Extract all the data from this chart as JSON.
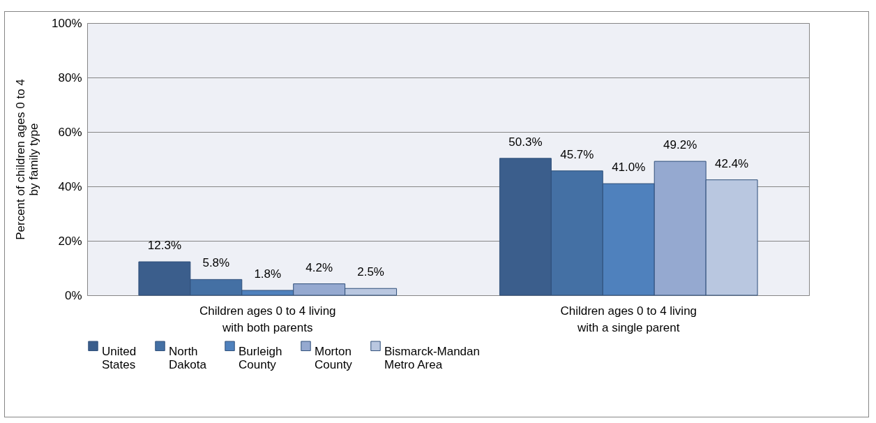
{
  "chart_data": {
    "type": "bar",
    "ylabel": "Percent of children ages 0 to 4 by family type",
    "categories": [
      "Children ages 0 to 4 living with both parents",
      "Children ages 0 to 4 living with a single parent"
    ],
    "series": [
      {
        "name": "United States",
        "color": "#3b5e8c",
        "values": [
          12.3,
          50.3
        ],
        "value_labels": [
          "12.3%",
          "50.3%"
        ]
      },
      {
        "name": "North Dakota",
        "color": "#4470a4",
        "values": [
          5.8,
          45.7
        ],
        "value_labels": [
          "5.8%",
          "45.7%"
        ]
      },
      {
        "name": "Burleigh County",
        "color": "#4f81bd",
        "values": [
          1.8,
          41.0
        ],
        "value_labels": [
          "1.8%",
          "41.0%"
        ]
      },
      {
        "name": "Morton County",
        "color": "#95a9d0",
        "values": [
          4.2,
          49.2
        ],
        "value_labels": [
          "4.2%",
          "49.2%"
        ]
      },
      {
        "name": "Bismarck-Mandan Metro Area",
        "color": "#b9c7e0",
        "values": [
          2.5,
          42.4
        ],
        "value_labels": [
          "2.5%",
          "42.4%"
        ]
      }
    ],
    "ylim": [
      0,
      100
    ],
    "yticks": [
      {
        "value": 0,
        "label": "0%"
      },
      {
        "value": 20,
        "label": "20%"
      },
      {
        "value": 40,
        "label": "40%"
      },
      {
        "value": 60,
        "label": "60%"
      },
      {
        "value": 80,
        "label": "80%"
      },
      {
        "value": 100,
        "label": "100%"
      }
    ],
    "grid": "y",
    "legend": "bottom"
  }
}
